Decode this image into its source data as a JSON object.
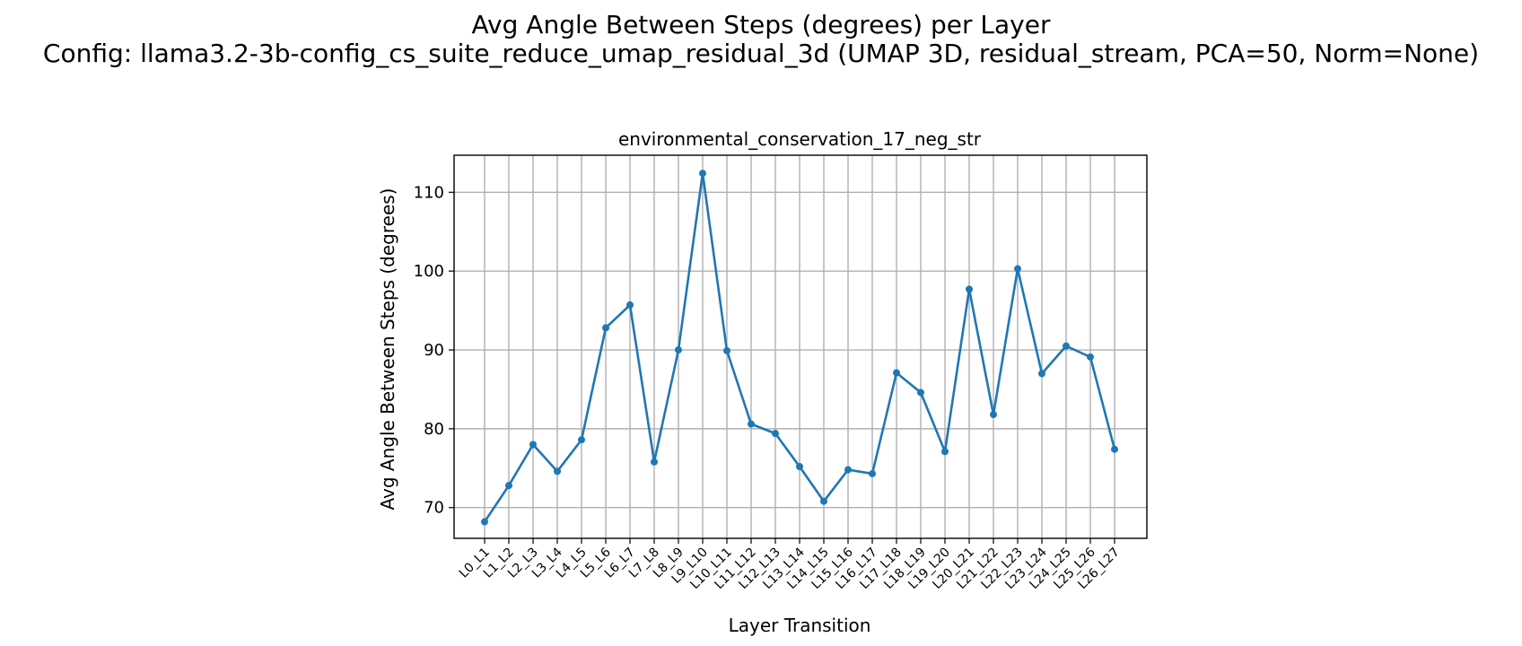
{
  "figure": {
    "title_line1": "Avg Angle Between Steps (degrees) per Layer",
    "title_line2": "Config: llama3.2-3b-config_cs_suite_reduce_umap_residual_3d (UMAP 3D, residual_stream, PCA=50, Norm=None)"
  },
  "chart_data": {
    "type": "line",
    "title": "environmental_conservation_17_neg_str",
    "xlabel": "Layer Transition",
    "ylabel": "Avg Angle Between Steps (degrees)",
    "categories": [
      "L0_L1",
      "L1_L2",
      "L2_L3",
      "L3_L4",
      "L4_L5",
      "L5_L6",
      "L6_L7",
      "L7_L8",
      "L8_L9",
      "L9_L10",
      "L10_L11",
      "L11_L12",
      "L12_L13",
      "L13_L14",
      "L14_L15",
      "L15_L16",
      "L16_L17",
      "L17_L18",
      "L18_L19",
      "L19_L20",
      "L20_L21",
      "L21_L22",
      "L22_L23",
      "L23_L24",
      "L24_L25",
      "L25_L26",
      "L26_L27"
    ],
    "values": [
      68.2,
      72.8,
      78.0,
      74.6,
      78.6,
      92.8,
      95.7,
      75.8,
      90.0,
      112.4,
      89.9,
      80.6,
      79.4,
      75.2,
      70.8,
      74.8,
      74.3,
      87.1,
      84.6,
      77.1,
      97.7,
      81.8,
      100.3,
      87.0,
      90.5,
      89.1,
      77.4
    ],
    "yticks": [
      70,
      80,
      90,
      100,
      110
    ],
    "ylim": [
      66.1,
      114.7
    ],
    "grid": true,
    "color": "#1f77b4"
  }
}
